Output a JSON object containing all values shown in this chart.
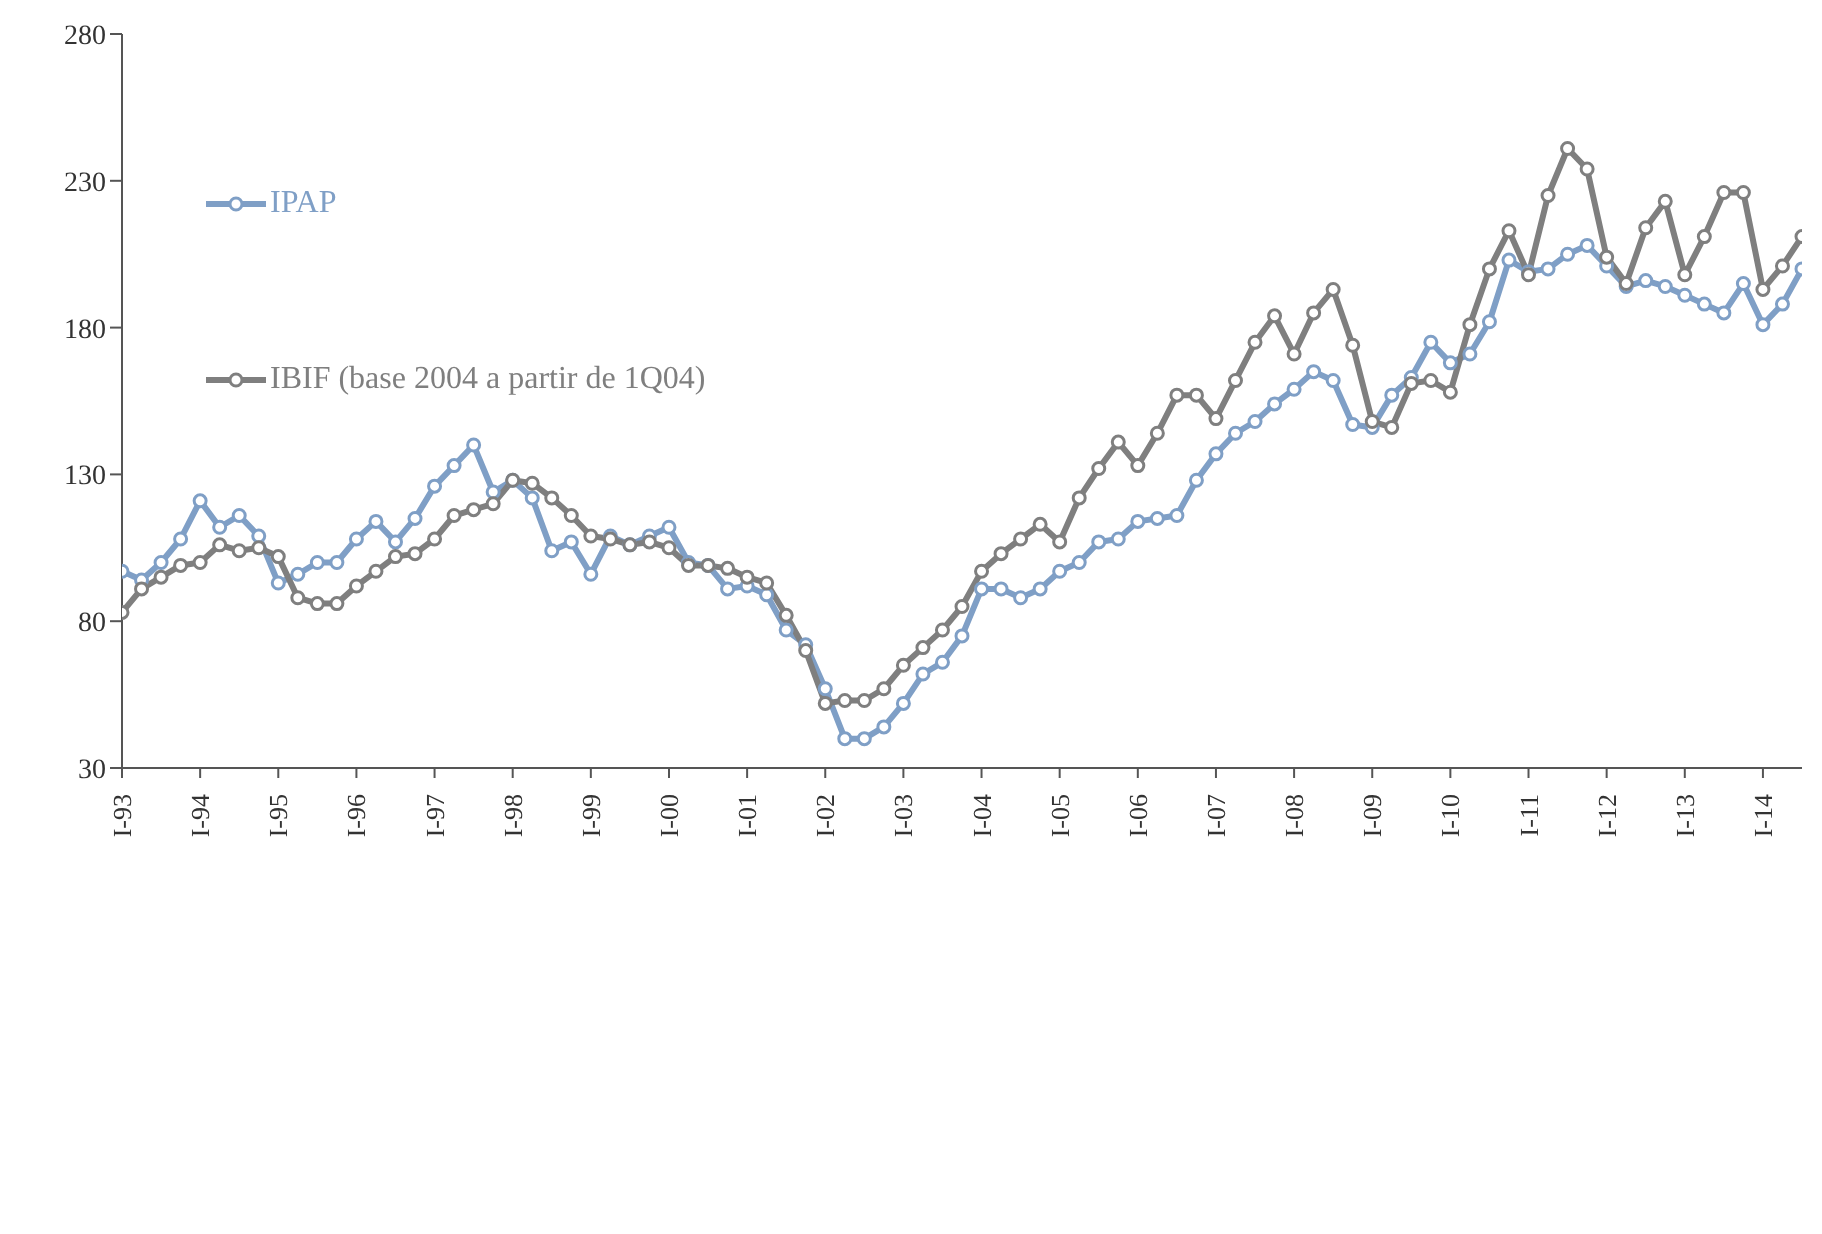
{
  "chart_data": {
    "type": "line",
    "categories": [
      "I-93",
      null,
      null,
      null,
      "I-94",
      null,
      null,
      null,
      "I-95",
      null,
      null,
      null,
      "I-96",
      null,
      null,
      null,
      "I-97",
      null,
      null,
      null,
      "I-98",
      null,
      null,
      null,
      "I-99",
      null,
      null,
      null,
      "I-00",
      null,
      null,
      null,
      "I-01",
      null,
      null,
      null,
      "I-02",
      null,
      null,
      null,
      "I-03",
      null,
      null,
      null,
      "I-04",
      null,
      null,
      null,
      "I-05",
      null,
      null,
      null,
      "I-06",
      null,
      null,
      null,
      "I-07",
      null,
      null,
      null,
      "I-08",
      null,
      null,
      null,
      "I-09",
      null,
      null,
      null,
      "I-10",
      null,
      null,
      null,
      "I-11",
      null,
      null,
      null,
      "I-12",
      null,
      null,
      null,
      "I-13",
      null,
      null,
      null,
      "I-14",
      null,
      null
    ],
    "series": [
      {
        "name": "IPAP",
        "color": "#7f9fc6",
        "values": [
          97,
          94,
          100,
          108,
          121,
          112,
          116,
          109,
          93,
          96,
          100,
          100,
          108,
          114,
          107,
          115,
          126,
          133,
          140,
          124,
          128,
          122,
          104,
          107,
          96,
          109,
          106,
          109,
          112,
          100,
          99,
          91,
          92,
          89,
          77,
          72,
          57,
          40,
          40,
          44,
          52,
          62,
          66,
          75,
          91,
          91,
          88,
          91,
          97,
          100,
          107,
          108,
          114,
          115,
          116,
          128,
          137,
          144,
          148,
          154,
          159,
          165,
          162,
          147,
          146,
          157,
          163,
          175,
          168,
          171,
          182,
          203,
          199,
          200,
          205,
          208,
          201,
          194,
          196,
          194,
          191,
          188,
          185,
          195,
          181,
          188,
          200
        ]
      },
      {
        "name": "IBIF (base 2004 a partir de 1Q04)",
        "color": "#7f7f7f",
        "values": [
          83,
          91,
          95,
          99,
          100,
          106,
          104,
          105,
          102,
          88,
          86,
          86,
          92,
          97,
          102,
          103,
          108,
          116,
          118,
          120,
          128,
          127,
          122,
          116,
          109,
          108,
          106,
          107,
          105,
          99,
          99,
          98,
          95,
          93,
          82,
          70,
          52,
          53,
          53,
          57,
          65,
          71,
          77,
          85,
          97,
          103,
          108,
          113,
          107,
          122,
          132,
          141,
          133,
          144,
          157,
          157,
          149,
          162,
          175,
          184,
          171,
          185,
          193,
          174,
          148,
          146,
          161,
          162,
          158,
          181,
          200,
          213,
          198,
          225,
          241,
          234,
          204,
          195,
          214,
          223,
          198,
          211,
          226,
          226,
          193,
          201,
          211
        ]
      }
    ],
    "ylim": [
      30,
      280
    ],
    "yticks": [
      30,
      80,
      130,
      180,
      230,
      280
    ],
    "grid": false,
    "legend": "top left",
    "marker": "circle",
    "line_style": "solid"
  }
}
